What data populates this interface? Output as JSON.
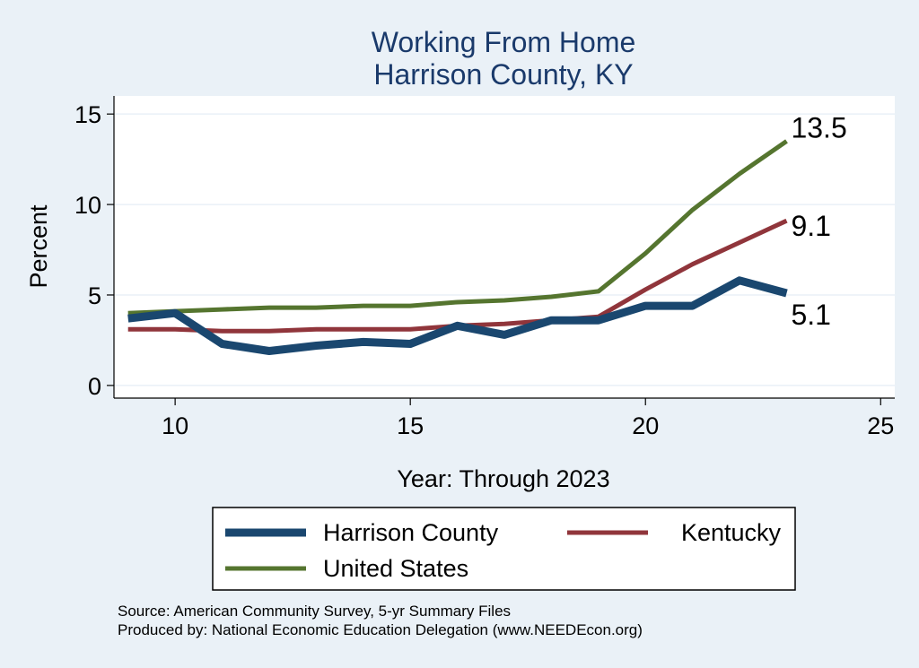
{
  "chart_data": {
    "type": "line",
    "title": [
      "Working From Home",
      "Harrison County, KY"
    ],
    "xlabel": "Year: Through 2023",
    "ylabel": "Percent",
    "xlim": [
      8.7,
      25.3
    ],
    "ylim": [
      -0.7,
      16
    ],
    "xticks": [
      10,
      15,
      20,
      25
    ],
    "yticks": [
      0,
      5,
      10,
      15
    ],
    "grid": "horizontal",
    "legend_position": "bottom",
    "x": [
      9,
      10,
      11,
      12,
      13,
      14,
      15,
      16,
      17,
      18,
      19,
      20,
      21,
      22,
      23
    ],
    "series": [
      {
        "name": "Harrison County",
        "color": "#1a476f",
        "values": [
          3.7,
          4.0,
          2.3,
          1.9,
          2.2,
          2.4,
          2.3,
          3.3,
          2.8,
          3.6,
          3.6,
          4.4,
          4.4,
          5.8,
          5.1
        ],
        "end_label": "5.1"
      },
      {
        "name": "Kentucky",
        "color": "#90353b",
        "values": [
          3.1,
          3.1,
          3.0,
          3.0,
          3.1,
          3.1,
          3.1,
          3.3,
          3.4,
          3.6,
          3.8,
          5.3,
          6.7,
          7.9,
          9.1
        ],
        "end_label": "9.1"
      },
      {
        "name": "United States",
        "color": "#55752f",
        "values": [
          4.0,
          4.1,
          4.2,
          4.3,
          4.3,
          4.4,
          4.4,
          4.6,
          4.7,
          4.9,
          5.2,
          7.3,
          9.7,
          11.7,
          13.5
        ],
        "end_label": "13.5"
      }
    ]
  },
  "footer": {
    "source": "Source: American Community Survey, 5-yr Summary Files",
    "produced": "Produced by: National Economic Education Delegation (www.NEEDEcon.org)"
  }
}
